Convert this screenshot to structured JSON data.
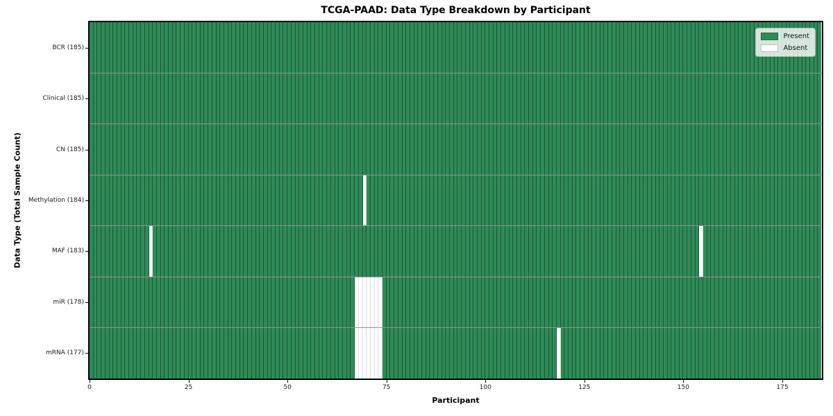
{
  "chart_data": {
    "type": "heatmap",
    "title": "TCGA-PAAD: Data Type Breakdown by Participant",
    "xlabel": "Participant",
    "ylabel": "Data Type (Total Sample Count)",
    "xlim": [
      0,
      185
    ],
    "n_participants": 185,
    "x_ticks": [
      0,
      25,
      50,
      75,
      100,
      125,
      150,
      175
    ],
    "grid": false,
    "legend_position": "upper right",
    "colors": {
      "present": "#2e8b57",
      "absent": "#ffffff",
      "cell_edge": "rgba(0,0,0,0.38)",
      "row_divider": "rgba(0,0,0,0.42)"
    },
    "legend": [
      {
        "label": "Present",
        "color": "#2e8b57"
      },
      {
        "label": "Absent",
        "color": "#ffffff"
      }
    ],
    "rows": [
      {
        "label": "BCR (185)",
        "total_samples": 185,
        "absent_participants": []
      },
      {
        "label": "Clinical (185)",
        "total_samples": 185,
        "absent_participants": []
      },
      {
        "label": "CN (185)",
        "total_samples": 185,
        "absent_participants": []
      },
      {
        "label": "Methylation (184)",
        "total_samples": 184,
        "absent_participants": [
          69
        ]
      },
      {
        "label": "MAF (183)",
        "total_samples": 183,
        "absent_participants": [
          15,
          154
        ]
      },
      {
        "label": "miR (178)",
        "total_samples": 178,
        "absent_participants": [
          67,
          68,
          69,
          70,
          71,
          72,
          73
        ]
      },
      {
        "label": "mRNA (177)",
        "total_samples": 177,
        "absent_participants": [
          67,
          68,
          69,
          70,
          71,
          72,
          73,
          118
        ]
      }
    ]
  }
}
